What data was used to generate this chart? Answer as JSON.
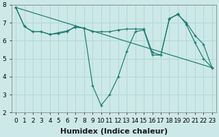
{
  "xlabel": "Humidex (Indice chaleur)",
  "ylabel": "",
  "xlim": [
    -0.5,
    23.5
  ],
  "ylim": [
    2,
    8
  ],
  "xticks": [
    0,
    1,
    2,
    3,
    4,
    5,
    6,
    7,
    8,
    9,
    10,
    11,
    12,
    13,
    14,
    15,
    16,
    17,
    18,
    19,
    20,
    21,
    22,
    23
  ],
  "yticks": [
    2,
    3,
    4,
    5,
    6,
    7,
    8
  ],
  "background_color": "#cde8e8",
  "grid_color": "#b0d8d8",
  "line_color": "#1a7a6e",
  "lines": [
    {
      "x": [
        0,
        1,
        2,
        3,
        4,
        5,
        6,
        7,
        8,
        9,
        10,
        11,
        12,
        13,
        14,
        15,
        16,
        17,
        18,
        19,
        20,
        21,
        22,
        23
      ],
      "y": [
        7.85,
        6.8,
        6.5,
        6.5,
        6.35,
        6.4,
        6.5,
        6.8,
        6.7,
        3.5,
        2.4,
        3.0,
        4.0,
        5.4,
        6.5,
        6.6,
        5.2,
        5.2,
        7.2,
        7.5,
        6.9,
        5.9,
        5.0,
        4.5
      ]
    },
    {
      "x": [
        0,
        1,
        2,
        3,
        4,
        5,
        6,
        7,
        8,
        9,
        10,
        11,
        12,
        13,
        14,
        15,
        16,
        17,
        18,
        19,
        20,
        21,
        22,
        23
      ],
      "y": [
        7.85,
        6.8,
        6.5,
        6.5,
        6.35,
        6.45,
        6.55,
        6.75,
        6.7,
        6.5,
        6.5,
        6.5,
        6.6,
        6.65,
        6.65,
        6.65,
        5.35,
        5.2,
        7.25,
        7.45,
        7.0,
        6.3,
        5.8,
        4.5
      ]
    },
    {
      "x": [
        0,
        23
      ],
      "y": [
        7.85,
        4.5
      ]
    }
  ],
  "fontsize_xlabel": 8,
  "fontsize_ticks": 6.5
}
